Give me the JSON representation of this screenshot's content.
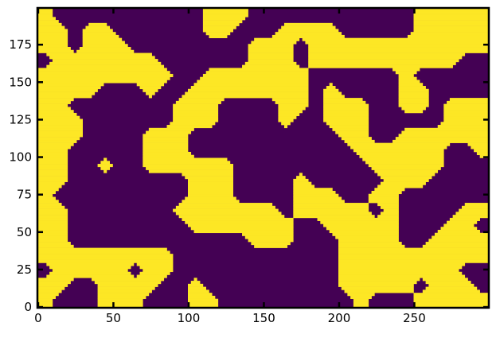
{
  "chart_data": {
    "type": "heatmap",
    "title": "",
    "xlabel": "",
    "ylabel": "",
    "xlim": [
      0,
      300
    ],
    "ylim": [
      0,
      200
    ],
    "grid": false,
    "colormap": "viridis (binary)",
    "colors": {
      "low": "#440154",
      "high": "#fde725"
    },
    "x_ticks": [
      "0",
      "50",
      "100",
      "150",
      "200",
      "250"
    ],
    "y_ticks": [
      "0",
      "25",
      "50",
      "75",
      "100",
      "125",
      "150",
      "175"
    ],
    "cell_size": 10,
    "rows_top_to_bottom": [
      "100000000001110000000000011111",
      "110110000001100011110000011111",
      "110111000000001110111111111111",
      "011111110000001110111111111100",
      "111111111001111111000000100000",
      "111100010011111111010000110000",
      "110000000111000011011100110111",
      "111000000111000010011100000111",
      "111000011100000000001100111111",
      "110000011100000000000111111001",
      "110010011111100000000011111000",
      "110000000011100001000001110000",
      "100000000011100001110011000000",
      "110000000111111101111101000011",
      "110000000011111110011111000110",
      "110000000000001110001111001111",
      "111111111000000000001111111111",
      "011111011000000000001111111100",
      "110011110010000000001111101110",
      "100011100011000000000100011111"
    ]
  }
}
